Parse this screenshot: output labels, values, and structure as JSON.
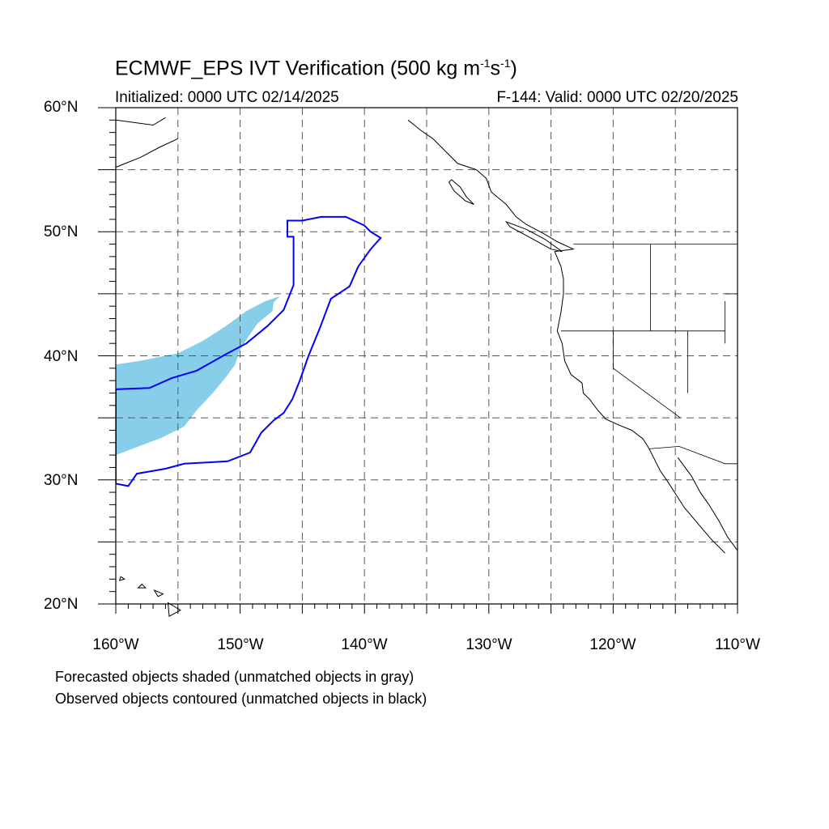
{
  "title": {
    "main": "ECMWF_EPS IVT Verification (500 kg m",
    "exp1": "-1",
    "mid": "s",
    "exp2": "-1",
    "end": ")"
  },
  "subtitle_left": "Initialized: 0000 UTC 02/14/2025",
  "subtitle_right": "F-144: Valid: 0000 UTC 02/20/2025",
  "lat_labels": [
    "60°N",
    "50°N",
    "40°N",
    "30°N",
    "20°N"
  ],
  "lon_labels": [
    "160°W",
    "150°W",
    "140°W",
    "130°W",
    "120°W",
    "110°W"
  ],
  "footnotes": [
    "Forecasted objects shaded (unmatched objects in gray)",
    "Observed objects contoured (unmatched objects in black)"
  ],
  "map": {
    "lon_range": [
      -160,
      -110
    ],
    "lat_range": [
      20,
      60
    ],
    "grid_spacing_deg": 5,
    "colors": {
      "forecast_fill": "#87ceeb",
      "observed_contour": "#0000ff",
      "coastline": "#000000",
      "grid": "#555555"
    },
    "forecast_object": [
      [
        -160,
        32
      ],
      [
        -160,
        39.3
      ],
      [
        -158,
        39.6
      ],
      [
        -155,
        40.2
      ],
      [
        -153,
        41.2
      ],
      [
        -151,
        42.5
      ],
      [
        -149.5,
        43.6
      ],
      [
        -148,
        44.4
      ],
      [
        -146.8,
        44.8
      ],
      [
        -147.3,
        44.3
      ],
      [
        -147.4,
        43.6
      ],
      [
        -148.6,
        42.6
      ],
      [
        -149.3,
        41.6
      ],
      [
        -150,
        40.5
      ],
      [
        -150.4,
        39.3
      ],
      [
        -151.2,
        38.2
      ],
      [
        -152.2,
        37
      ],
      [
        -153.5,
        35.6
      ],
      [
        -154.5,
        34.3
      ],
      [
        -156.3,
        33.4
      ],
      [
        -158.4,
        32.6
      ]
    ],
    "observed_object": [
      [
        -160,
        29.7
      ],
      [
        -159,
        29.5
      ],
      [
        -158.3,
        30.5
      ],
      [
        -156,
        30.9
      ],
      [
        -154.5,
        31.3
      ],
      [
        -151,
        31.5
      ],
      [
        -149.2,
        32.2
      ],
      [
        -148.3,
        33.8
      ],
      [
        -147.3,
        34.8
      ],
      [
        -146.5,
        35.4
      ],
      [
        -145.8,
        36.5
      ],
      [
        -145.2,
        38
      ],
      [
        -144.5,
        40
      ],
      [
        -143.6,
        42.2
      ],
      [
        -142.7,
        44.6
      ],
      [
        -141.2,
        45.6
      ],
      [
        -140.5,
        47.2
      ],
      [
        -139.5,
        48.6
      ],
      [
        -138.7,
        49.5
      ],
      [
        -139.5,
        50
      ],
      [
        -140,
        50.5
      ],
      [
        -141.5,
        51.2
      ],
      [
        -143.5,
        51.2
      ],
      [
        -145,
        50.9
      ],
      [
        -146.2,
        50.9
      ],
      [
        -146.2,
        49.6
      ],
      [
        -145.7,
        49.6
      ],
      [
        -145.7,
        45.7
      ],
      [
        -146.5,
        43.7
      ],
      [
        -147.8,
        42.4
      ],
      [
        -149.5,
        41
      ],
      [
        -151,
        40.2
      ],
      [
        -153.5,
        38.8
      ],
      [
        -155.5,
        38.2
      ],
      [
        -157.3,
        37.4
      ],
      [
        -160,
        37.3
      ]
    ],
    "coastline": [
      [
        -136.5,
        59
      ],
      [
        -135.5,
        58.2
      ],
      [
        -134.5,
        57.5
      ],
      [
        -133.5,
        56.5
      ],
      [
        -132.5,
        55.5
      ],
      [
        -131,
        55
      ],
      [
        -130.2,
        54.3
      ],
      [
        -129.8,
        53.2
      ],
      [
        -128.6,
        52.2
      ],
      [
        -127.8,
        51.2
      ],
      [
        -127,
        50.6
      ],
      [
        -125.5,
        49.8
      ],
      [
        -124.5,
        49.2
      ],
      [
        -123.2,
        48.6
      ],
      [
        -124.7,
        48.4
      ],
      [
        -124.2,
        47.2
      ],
      [
        -124,
        46.2
      ],
      [
        -124,
        45
      ],
      [
        -124.2,
        43.5
      ],
      [
        -124.5,
        42
      ],
      [
        -124.1,
        41
      ],
      [
        -123.9,
        39.6
      ],
      [
        -123.4,
        38.5
      ],
      [
        -122.5,
        37.8
      ],
      [
        -122.4,
        37
      ],
      [
        -121.9,
        36.5
      ],
      [
        -121.3,
        35.7
      ],
      [
        -120.6,
        34.9
      ],
      [
        -119.5,
        34.4
      ],
      [
        -118.5,
        34
      ],
      [
        -117.6,
        33.3
      ],
      [
        -117.1,
        32.5
      ],
      [
        -116.7,
        31.7
      ],
      [
        -116.2,
        30.7
      ],
      [
        -115.7,
        30
      ],
      [
        -115,
        28.9
      ],
      [
        -114.3,
        27.8
      ],
      [
        -113.2,
        26.5
      ],
      [
        -112.1,
        25.2
      ],
      [
        -111,
        24.1
      ]
    ],
    "gulf_coast": [
      [
        -114.8,
        31.8
      ],
      [
        -113.7,
        30.3
      ],
      [
        -113,
        29
      ],
      [
        -112.3,
        28
      ],
      [
        -111.5,
        26.7
      ],
      [
        -110.8,
        25.4
      ],
      [
        -110,
        24.3
      ]
    ],
    "alaska_bc_islands": [
      [
        [
          -133,
          54.2
        ],
        [
          -132.3,
          53.6
        ],
        [
          -131.8,
          52.8
        ],
        [
          -131.2,
          52.2
        ],
        [
          -131.9,
          52.5
        ],
        [
          -132.8,
          53.3
        ],
        [
          -133.2,
          54
        ]
      ],
      [
        [
          -128.6,
          50.8
        ],
        [
          -127,
          50.2
        ],
        [
          -125.5,
          49.4
        ],
        [
          -124.1,
          48.4
        ],
        [
          -125,
          48.6
        ],
        [
          -126.8,
          49.6
        ],
        [
          -128.3,
          50.4
        ]
      ]
    ],
    "aleutian_coast": [
      [
        -160,
        55.2
      ],
      [
        -158,
        56
      ],
      [
        -156.5,
        56.8
      ],
      [
        -155,
        57.5
      ]
    ],
    "kamchatka_coast": [
      [
        -160,
        59
      ],
      [
        -158.5,
        58.8
      ],
      [
        -157,
        58.6
      ],
      [
        -156,
        59.2
      ]
    ],
    "hawaii_islands": [
      [
        [
          -159.6,
          22.2
        ],
        [
          -159.3,
          22
        ],
        [
          -159.7,
          21.9
        ]
      ],
      [
        [
          -157.9,
          21.6
        ],
        [
          -157.6,
          21.3
        ],
        [
          -158.2,
          21.3
        ]
      ],
      [
        [
          -156.9,
          21.1
        ],
        [
          -156.2,
          20.8
        ],
        [
          -156.6,
          20.6
        ]
      ],
      [
        [
          -155.8,
          20.1
        ],
        [
          -154.8,
          19.5
        ],
        [
          -155.7,
          19
        ]
      ]
    ],
    "borders": [
      [
        [
          -123.2,
          49
        ],
        [
          -110,
          49
        ]
      ],
      [
        [
          -124.2,
          42
        ],
        [
          -111,
          42
        ]
      ],
      [
        [
          -117,
          49
        ],
        [
          -117,
          42
        ]
      ],
      [
        [
          -120,
          42
        ],
        [
          -120,
          39
        ],
        [
          -114.6,
          35
        ]
      ],
      [
        [
          -114,
          42
        ],
        [
          -114,
          37
        ]
      ],
      [
        [
          -117.1,
          32.5
        ],
        [
          -114.7,
          32.7
        ],
        [
          -111,
          31.3
        ],
        [
          -110,
          31.3
        ]
      ],
      [
        [
          -111,
          45
        ],
        [
          -110,
          45
        ]
      ],
      [
        [
          -111,
          44.4
        ],
        [
          -111,
          41
        ]
      ]
    ]
  }
}
